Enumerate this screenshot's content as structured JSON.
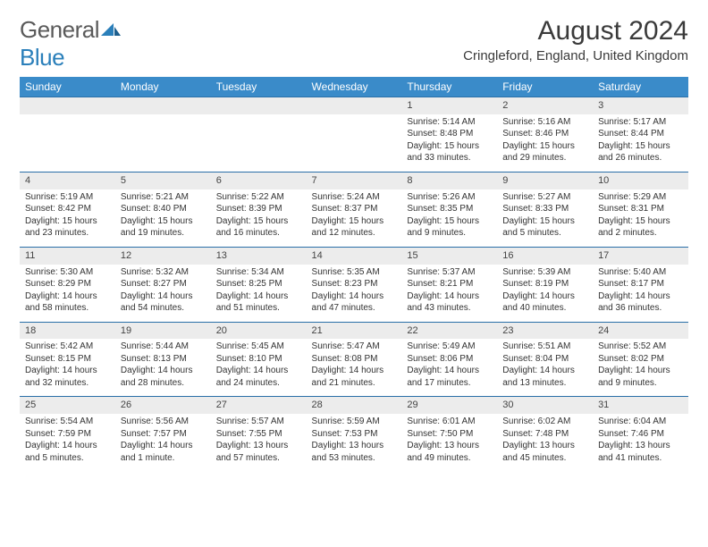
{
  "logo": {
    "word1": "General",
    "word2": "Blue"
  },
  "title": "August 2024",
  "location": "Cringleford, England, United Kingdom",
  "colors": {
    "header_bg": "#3a8bc9",
    "header_text": "#ffffff",
    "row_divider": "#2a6fa8",
    "daynum_bg": "#ececec",
    "logo_blue": "#2a7fba",
    "logo_gray": "#5a5a5a"
  },
  "day_header_fontsize": 12,
  "body_fontsize": 10,
  "title_fontsize": 30,
  "day_names": [
    "Sunday",
    "Monday",
    "Tuesday",
    "Wednesday",
    "Thursday",
    "Friday",
    "Saturday"
  ],
  "weeks": [
    [
      null,
      null,
      null,
      null,
      {
        "d": "1",
        "sr": "Sunrise: 5:14 AM",
        "ss": "Sunset: 8:48 PM",
        "dl": "Daylight: 15 hours and 33 minutes."
      },
      {
        "d": "2",
        "sr": "Sunrise: 5:16 AM",
        "ss": "Sunset: 8:46 PM",
        "dl": "Daylight: 15 hours and 29 minutes."
      },
      {
        "d": "3",
        "sr": "Sunrise: 5:17 AM",
        "ss": "Sunset: 8:44 PM",
        "dl": "Daylight: 15 hours and 26 minutes."
      }
    ],
    [
      {
        "d": "4",
        "sr": "Sunrise: 5:19 AM",
        "ss": "Sunset: 8:42 PM",
        "dl": "Daylight: 15 hours and 23 minutes."
      },
      {
        "d": "5",
        "sr": "Sunrise: 5:21 AM",
        "ss": "Sunset: 8:40 PM",
        "dl": "Daylight: 15 hours and 19 minutes."
      },
      {
        "d": "6",
        "sr": "Sunrise: 5:22 AM",
        "ss": "Sunset: 8:39 PM",
        "dl": "Daylight: 15 hours and 16 minutes."
      },
      {
        "d": "7",
        "sr": "Sunrise: 5:24 AM",
        "ss": "Sunset: 8:37 PM",
        "dl": "Daylight: 15 hours and 12 minutes."
      },
      {
        "d": "8",
        "sr": "Sunrise: 5:26 AM",
        "ss": "Sunset: 8:35 PM",
        "dl": "Daylight: 15 hours and 9 minutes."
      },
      {
        "d": "9",
        "sr": "Sunrise: 5:27 AM",
        "ss": "Sunset: 8:33 PM",
        "dl": "Daylight: 15 hours and 5 minutes."
      },
      {
        "d": "10",
        "sr": "Sunrise: 5:29 AM",
        "ss": "Sunset: 8:31 PM",
        "dl": "Daylight: 15 hours and 2 minutes."
      }
    ],
    [
      {
        "d": "11",
        "sr": "Sunrise: 5:30 AM",
        "ss": "Sunset: 8:29 PM",
        "dl": "Daylight: 14 hours and 58 minutes."
      },
      {
        "d": "12",
        "sr": "Sunrise: 5:32 AM",
        "ss": "Sunset: 8:27 PM",
        "dl": "Daylight: 14 hours and 54 minutes."
      },
      {
        "d": "13",
        "sr": "Sunrise: 5:34 AM",
        "ss": "Sunset: 8:25 PM",
        "dl": "Daylight: 14 hours and 51 minutes."
      },
      {
        "d": "14",
        "sr": "Sunrise: 5:35 AM",
        "ss": "Sunset: 8:23 PM",
        "dl": "Daylight: 14 hours and 47 minutes."
      },
      {
        "d": "15",
        "sr": "Sunrise: 5:37 AM",
        "ss": "Sunset: 8:21 PM",
        "dl": "Daylight: 14 hours and 43 minutes."
      },
      {
        "d": "16",
        "sr": "Sunrise: 5:39 AM",
        "ss": "Sunset: 8:19 PM",
        "dl": "Daylight: 14 hours and 40 minutes."
      },
      {
        "d": "17",
        "sr": "Sunrise: 5:40 AM",
        "ss": "Sunset: 8:17 PM",
        "dl": "Daylight: 14 hours and 36 minutes."
      }
    ],
    [
      {
        "d": "18",
        "sr": "Sunrise: 5:42 AM",
        "ss": "Sunset: 8:15 PM",
        "dl": "Daylight: 14 hours and 32 minutes."
      },
      {
        "d": "19",
        "sr": "Sunrise: 5:44 AM",
        "ss": "Sunset: 8:13 PM",
        "dl": "Daylight: 14 hours and 28 minutes."
      },
      {
        "d": "20",
        "sr": "Sunrise: 5:45 AM",
        "ss": "Sunset: 8:10 PM",
        "dl": "Daylight: 14 hours and 24 minutes."
      },
      {
        "d": "21",
        "sr": "Sunrise: 5:47 AM",
        "ss": "Sunset: 8:08 PM",
        "dl": "Daylight: 14 hours and 21 minutes."
      },
      {
        "d": "22",
        "sr": "Sunrise: 5:49 AM",
        "ss": "Sunset: 8:06 PM",
        "dl": "Daylight: 14 hours and 17 minutes."
      },
      {
        "d": "23",
        "sr": "Sunrise: 5:51 AM",
        "ss": "Sunset: 8:04 PM",
        "dl": "Daylight: 14 hours and 13 minutes."
      },
      {
        "d": "24",
        "sr": "Sunrise: 5:52 AM",
        "ss": "Sunset: 8:02 PM",
        "dl": "Daylight: 14 hours and 9 minutes."
      }
    ],
    [
      {
        "d": "25",
        "sr": "Sunrise: 5:54 AM",
        "ss": "Sunset: 7:59 PM",
        "dl": "Daylight: 14 hours and 5 minutes."
      },
      {
        "d": "26",
        "sr": "Sunrise: 5:56 AM",
        "ss": "Sunset: 7:57 PM",
        "dl": "Daylight: 14 hours and 1 minute."
      },
      {
        "d": "27",
        "sr": "Sunrise: 5:57 AM",
        "ss": "Sunset: 7:55 PM",
        "dl": "Daylight: 13 hours and 57 minutes."
      },
      {
        "d": "28",
        "sr": "Sunrise: 5:59 AM",
        "ss": "Sunset: 7:53 PM",
        "dl": "Daylight: 13 hours and 53 minutes."
      },
      {
        "d": "29",
        "sr": "Sunrise: 6:01 AM",
        "ss": "Sunset: 7:50 PM",
        "dl": "Daylight: 13 hours and 49 minutes."
      },
      {
        "d": "30",
        "sr": "Sunrise: 6:02 AM",
        "ss": "Sunset: 7:48 PM",
        "dl": "Daylight: 13 hours and 45 minutes."
      },
      {
        "d": "31",
        "sr": "Sunrise: 6:04 AM",
        "ss": "Sunset: 7:46 PM",
        "dl": "Daylight: 13 hours and 41 minutes."
      }
    ]
  ]
}
